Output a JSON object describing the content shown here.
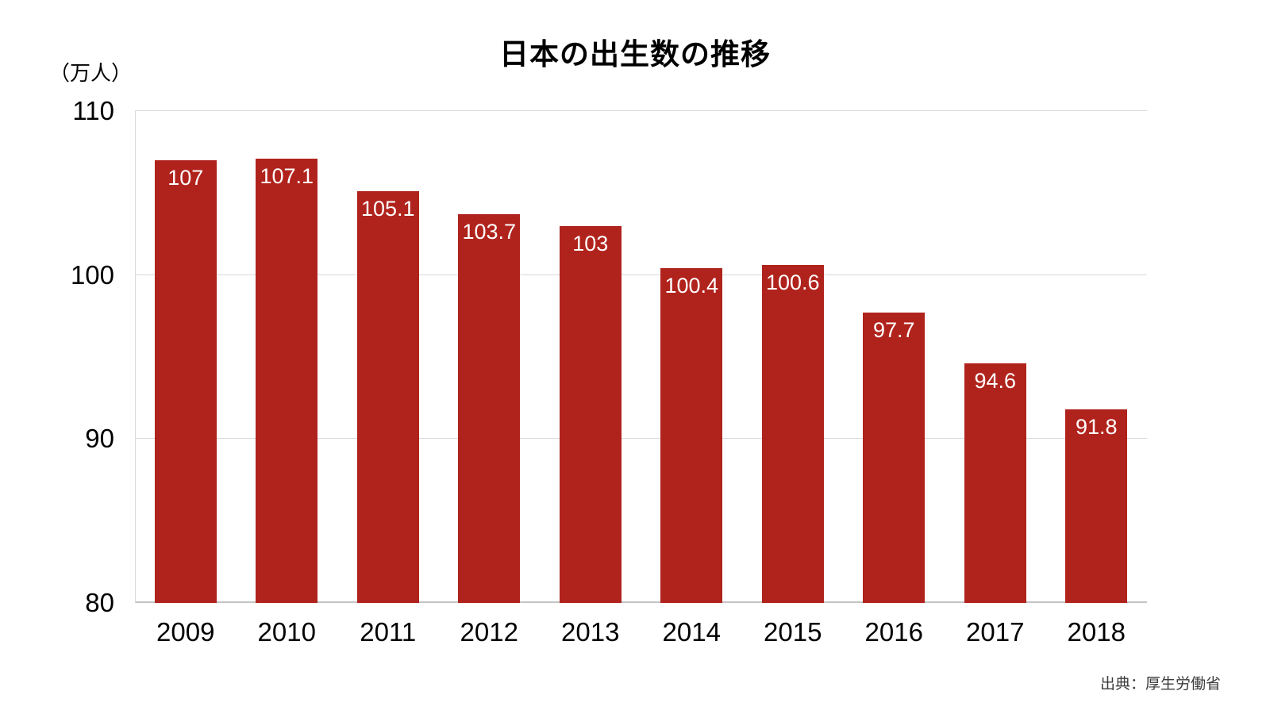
{
  "title": "日本の出生数の推移",
  "unit_label": "（万人）",
  "source": "出典：厚生労働省",
  "colors": {
    "bar": "#b0231c",
    "grid": "#d9d9d9",
    "value_label": "#ffffff"
  },
  "chart_data": {
    "type": "bar",
    "title": "日本の出生数の推移",
    "categories": [
      "2009",
      "2010",
      "2011",
      "2012",
      "2013",
      "2014",
      "2015",
      "2016",
      "2017",
      "2018"
    ],
    "values": [
      107,
      107.1,
      105.1,
      103.7,
      103,
      100.4,
      100.6,
      97.7,
      94.6,
      91.8
    ],
    "value_labels": [
      "107",
      "107.1",
      "105.1",
      "103.7",
      "103",
      "100.4",
      "100.6",
      "97.7",
      "94.6",
      "91.8"
    ],
    "xlabel": "",
    "ylabel": "（万人）",
    "ylim": [
      80,
      110
    ],
    "yticks": [
      80,
      90,
      100,
      110
    ],
    "grid": true,
    "legend": "none",
    "source": "出典：厚生労働省"
  }
}
